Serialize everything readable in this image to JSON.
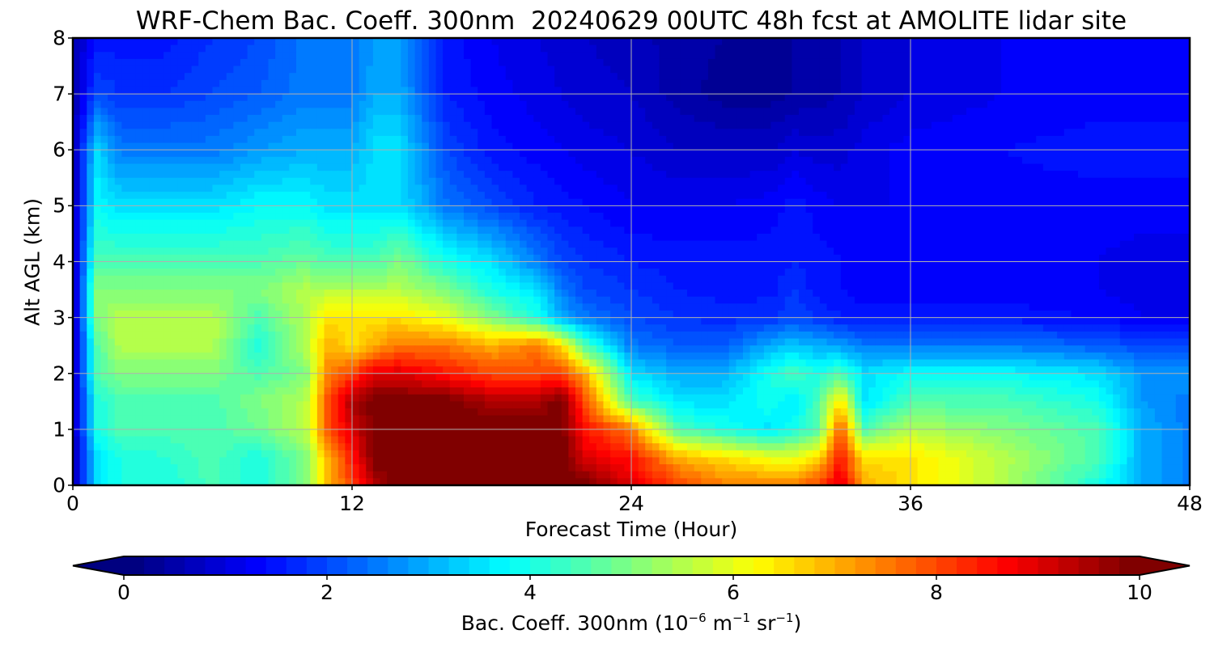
{
  "chart_data": {
    "type": "heatmap",
    "title": "WRF-Chem Bac. Coeff. 300nm  20240629 00UTC 48h fcst at AMOLITE lidar site",
    "xlabel": "Forecast Time (Hour)",
    "ylabel": "Alt AGL (km)",
    "xlim": [
      0,
      48
    ],
    "ylim": [
      0,
      8
    ],
    "xticks": [
      "0",
      "12",
      "24",
      "36",
      "48"
    ],
    "yticks": [
      "0",
      "1",
      "2",
      "3",
      "4",
      "5",
      "6",
      "7",
      "8"
    ],
    "grid": true,
    "colormap": "jet",
    "colorbar": {
      "orientation": "horizontal",
      "placement": "bottom",
      "range": [
        0,
        10
      ],
      "extend": "both",
      "ticks": [
        "0",
        "2",
        "4",
        "6",
        "8",
        "10"
      ],
      "label_main": "Bac. Coeff. 300nm  (10",
      "label_exp1": "−6",
      "label_unit1": " m",
      "label_exp2": "−1",
      "label_unit2": " sr",
      "label_exp3": "−1",
      "label_end": ")"
    },
    "altitudes_km": [
      0,
      0.5,
      1,
      1.5,
      2,
      2.5,
      3,
      3.5,
      4,
      5,
      6,
      7,
      8
    ],
    "hours": [
      0,
      1,
      2,
      4,
      6,
      8,
      10,
      11,
      12,
      13,
      14,
      16,
      18,
      20,
      21,
      22,
      24,
      26,
      28,
      30,
      31,
      32,
      33,
      34,
      36,
      40,
      44,
      46,
      48
    ],
    "values": [
      [
        0.5,
        3.5,
        4.0,
        4.0,
        4.5,
        4.0,
        5.0,
        7.0,
        8.0,
        9.5,
        10.0,
        10.0,
        10.0,
        10.0,
        10.0,
        10.0,
        9.0,
        8.0,
        7.5,
        7.5,
        7.5,
        8.0,
        9.0,
        7.0,
        6.5,
        5.5,
        4.0,
        3.0,
        2.5
      ],
      [
        0.5,
        3.5,
        4.0,
        4.2,
        4.5,
        4.0,
        5.0,
        7.0,
        8.5,
        10.0,
        10.0,
        10.0,
        10.0,
        10.0,
        10.0,
        9.0,
        8.5,
        7.0,
        6.5,
        6.0,
        6.0,
        6.5,
        8.5,
        6.5,
        6.5,
        5.5,
        4.5,
        3.0,
        2.5
      ],
      [
        0.5,
        4.0,
        4.5,
        4.5,
        4.5,
        4.8,
        5.5,
        8.0,
        9.0,
        10.0,
        10.0,
        10.0,
        10.0,
        10.0,
        10.0,
        8.5,
        7.5,
        4.5,
        4.0,
        3.5,
        4.0,
        4.5,
        8.0,
        4.5,
        5.5,
        5.0,
        4.5,
        3.0,
        2.5
      ],
      [
        0.5,
        4.0,
        4.5,
        4.5,
        4.5,
        5.0,
        5.5,
        8.0,
        9.5,
        10.0,
        10.0,
        10.0,
        9.5,
        9.5,
        10.0,
        8.0,
        4.5,
        3.5,
        3.5,
        4.0,
        3.5,
        4.5,
        6.5,
        3.5,
        4.5,
        4.5,
        4.0,
        2.8,
        2.5
      ],
      [
        0.5,
        4.5,
        5.0,
        5.0,
        5.0,
        4.5,
        5.0,
        7.5,
        8.0,
        9.0,
        9.0,
        8.5,
        8.0,
        8.0,
        8.0,
        7.0,
        3.5,
        3.0,
        3.0,
        4.0,
        4.5,
        4.0,
        4.5,
        3.5,
        3.8,
        3.8,
        3.5,
        2.8,
        2.8
      ],
      [
        0.5,
        4.5,
        5.5,
        5.5,
        5.5,
        4.0,
        5.5,
        7.0,
        6.5,
        7.0,
        7.5,
        7.5,
        7.0,
        7.5,
        6.5,
        4.5,
        2.5,
        2.2,
        2.2,
        3.0,
        3.2,
        3.0,
        2.8,
        2.5,
        2.5,
        2.5,
        2.2,
        2.0,
        2.0
      ],
      [
        0.5,
        5.0,
        5.5,
        5.5,
        5.5,
        4.5,
        5.5,
        6.5,
        6.5,
        6.5,
        6.5,
        6.0,
        5.0,
        4.0,
        3.0,
        2.5,
        2.0,
        1.8,
        1.7,
        1.8,
        2.0,
        1.8,
        1.6,
        1.5,
        1.5,
        1.5,
        1.4,
        1.2,
        1.1
      ],
      [
        0.5,
        5.0,
        5.0,
        5.0,
        5.0,
        5.0,
        5.5,
        5.5,
        5.5,
        5.5,
        5.5,
        5.0,
        4.0,
        3.5,
        2.5,
        2.0,
        1.8,
        1.6,
        1.5,
        1.5,
        1.8,
        1.5,
        1.4,
        1.3,
        1.3,
        1.3,
        1.2,
        1.1,
        1.1
      ],
      [
        0.5,
        4.5,
        4.5,
        4.5,
        4.5,
        4.5,
        4.8,
        4.5,
        4.5,
        4.5,
        5.0,
        4.0,
        3.5,
        2.5,
        2.0,
        1.8,
        1.6,
        1.5,
        1.5,
        1.5,
        1.6,
        1.5,
        1.4,
        1.3,
        1.3,
        1.3,
        1.2,
        1.1,
        1.1
      ],
      [
        0.5,
        3.8,
        3.5,
        3.5,
        3.5,
        3.8,
        3.8,
        3.5,
        3.5,
        3.5,
        3.5,
        2.5,
        2.0,
        1.6,
        1.5,
        1.4,
        1.2,
        1.2,
        1.2,
        1.3,
        1.5,
        1.3,
        1.2,
        1.2,
        1.2,
        1.3,
        1.3,
        1.3,
        1.3
      ],
      [
        0.5,
        3.5,
        2.5,
        2.5,
        2.5,
        2.8,
        3.0,
        3.0,
        3.0,
        3.5,
        3.5,
        2.0,
        1.5,
        1.3,
        1.2,
        1.1,
        1.0,
        0.8,
        0.8,
        0.8,
        1.0,
        0.9,
        0.9,
        1.1,
        1.3,
        1.4,
        1.5,
        1.5,
        1.5
      ],
      [
        0.5,
        2.0,
        1.8,
        1.8,
        2.0,
        2.2,
        2.5,
        2.5,
        2.5,
        3.0,
        3.0,
        1.6,
        1.3,
        1.1,
        1.0,
        0.9,
        0.8,
        0.5,
        0.3,
        0.3,
        0.4,
        0.5,
        0.6,
        0.8,
        1.0,
        1.2,
        1.3,
        1.3,
        1.3
      ],
      [
        0.5,
        1.5,
        1.5,
        1.5,
        1.8,
        2.0,
        2.5,
        2.5,
        2.5,
        2.8,
        2.8,
        1.5,
        1.2,
        1.0,
        0.9,
        0.8,
        0.7,
        0.5,
        0.4,
        0.3,
        0.4,
        0.5,
        0.6,
        0.8,
        1.0,
        1.2,
        1.3,
        1.3,
        1.3
      ]
    ]
  }
}
